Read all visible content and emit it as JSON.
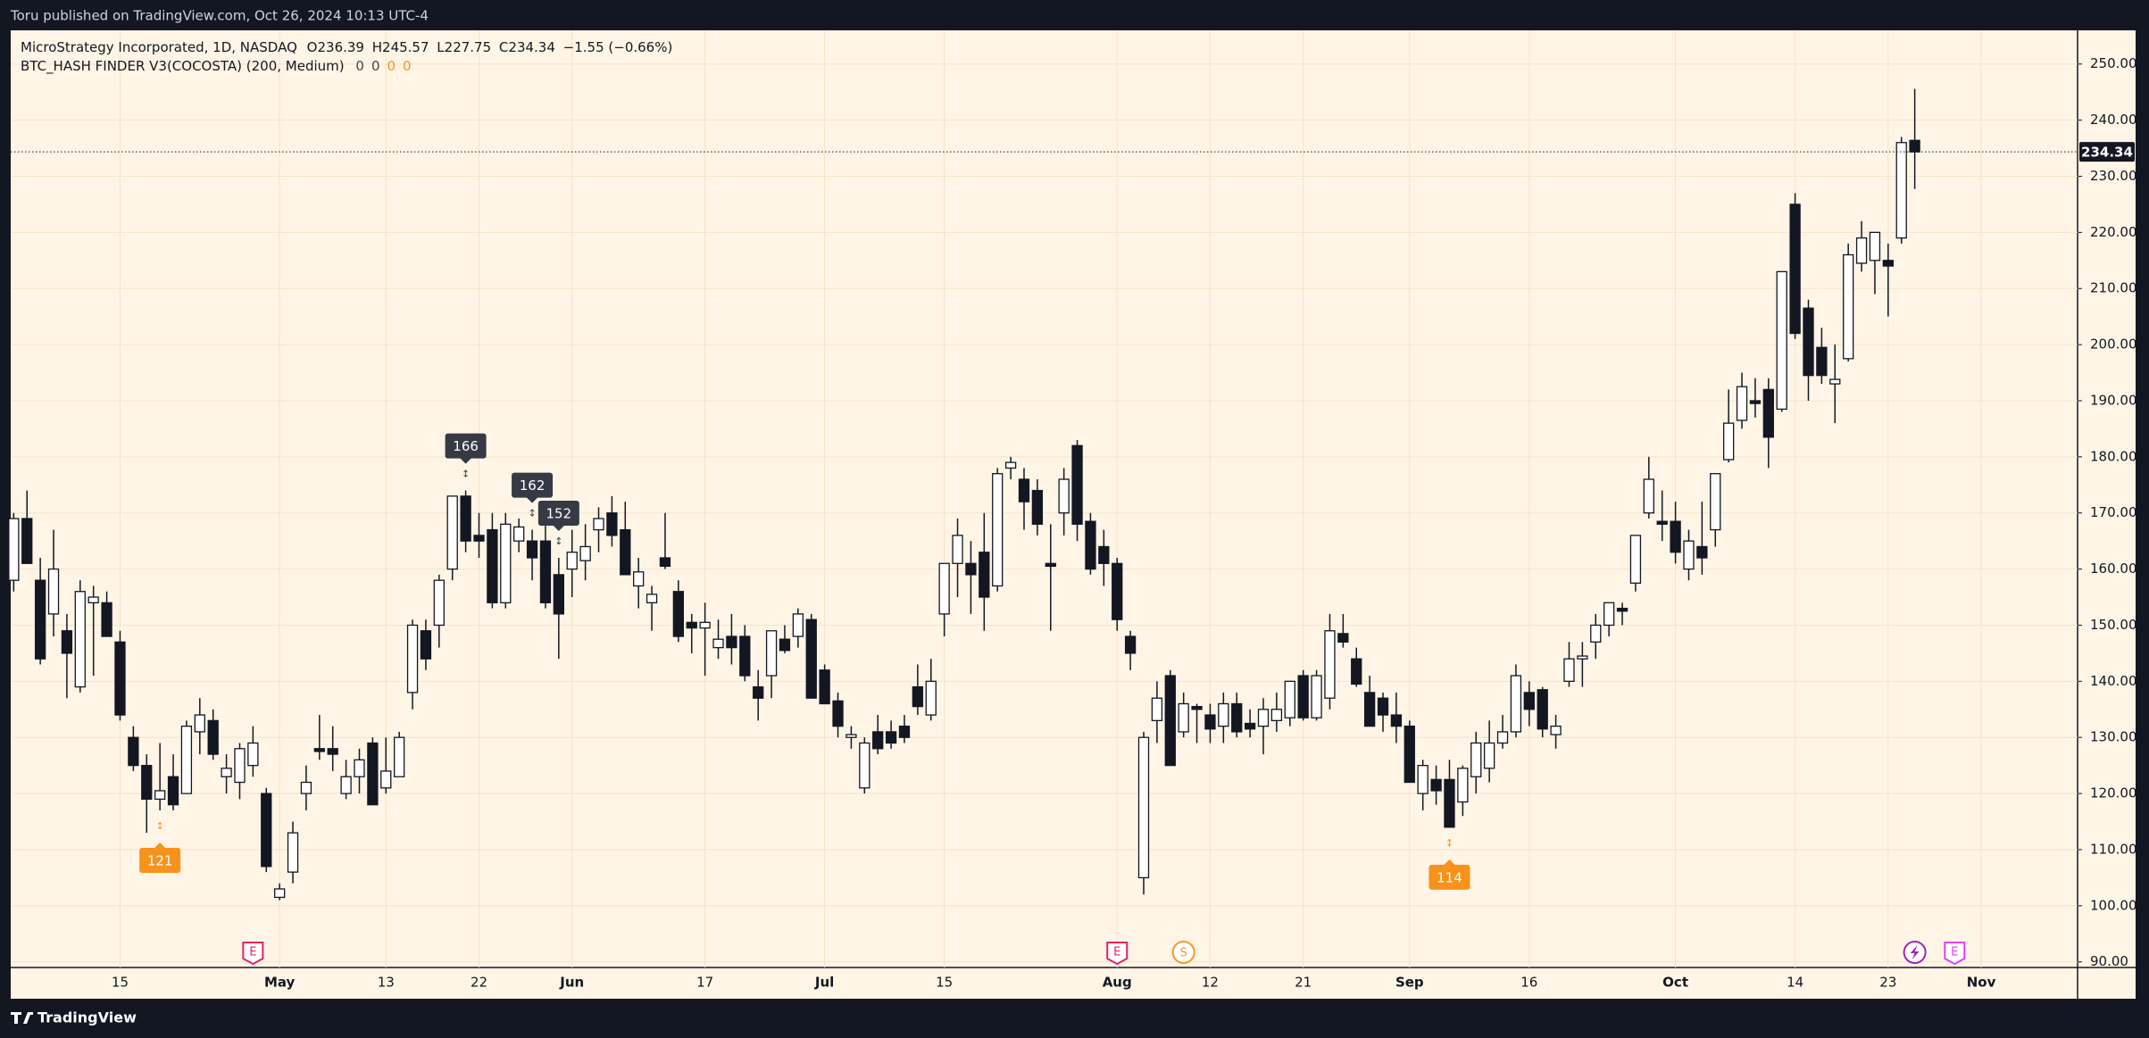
{
  "publisher": "Toru published on TradingView.com, Oct 26, 2024 10:13 UTC-4",
  "brand": "TradingView",
  "legend": {
    "symbol": "MicroStrategy Incorporated, 1D, NASDAQ",
    "open": "O236.39",
    "high": "H245.57",
    "low": "L227.75",
    "close": "C234.34",
    "change": "−1.55 (−0.66%)"
  },
  "indicator": {
    "name": "BTC_HASH FINDER V3(COCOSTA) (200, Medium)",
    "values": [
      0,
      0,
      0,
      0
    ],
    "colors": [
      "#434651",
      "#434651",
      "#f7931a",
      "#f7931a"
    ]
  },
  "chart_data": {
    "type": "candlestick",
    "categories": [
      null,
      null,
      null,
      null,
      null,
      null,
      null,
      null,
      "15",
      null,
      null,
      null,
      null,
      null,
      null,
      null,
      null,
      null,
      null,
      null,
      "May",
      null,
      null,
      null,
      null,
      null,
      null,
      null,
      "13",
      null,
      null,
      null,
      null,
      null,
      null,
      "22",
      null,
      null,
      null,
      null,
      null,
      null,
      "Jun",
      null,
      null,
      null,
      null,
      null,
      null,
      null,
      null,
      null,
      "17",
      null,
      null,
      null,
      null,
      null,
      null,
      null,
      null,
      "Jul",
      null,
      null,
      null,
      null,
      null,
      null,
      null,
      null,
      "15",
      null,
      null,
      null,
      null,
      null,
      null,
      null,
      null,
      null,
      null,
      null,
      null,
      "Aug",
      null,
      null,
      null,
      null,
      null,
      null,
      "12",
      null,
      null,
      null,
      null,
      null,
      null,
      "21",
      null,
      null,
      null,
      null,
      null,
      null,
      null,
      "Sep",
      null,
      null,
      null,
      null,
      null,
      null,
      null,
      null,
      "16",
      null,
      null,
      null,
      null,
      null,
      null,
      null,
      null,
      null,
      null,
      "Oct",
      null,
      null,
      null,
      null,
      null,
      null,
      null,
      null,
      "14",
      null,
      null,
      null,
      null,
      null,
      null,
      "23",
      null,
      null,
      null,
      null,
      null,
      null,
      "Nov"
    ],
    "open": [
      158,
      169,
      158,
      152,
      149,
      139,
      154,
      154,
      147,
      130,
      125,
      119,
      123,
      120,
      131,
      133,
      123,
      122,
      125,
      120,
      101.5,
      106,
      120,
      128,
      128,
      120,
      123,
      129,
      121,
      123,
      138,
      149,
      150,
      160,
      173,
      166,
      167,
      154,
      165,
      165,
      165,
      159,
      160,
      161.5,
      167,
      170,
      167,
      157,
      154,
      162,
      156,
      150.5,
      149.5,
      146,
      148,
      148,
      139,
      141,
      147.5,
      148,
      151,
      142,
      136.5,
      130,
      121,
      131,
      131,
      132,
      139,
      134,
      152,
      161,
      161,
      163,
      157,
      178,
      176,
      174,
      161,
      170,
      182,
      168.5,
      164,
      161,
      148,
      105,
      133,
      141,
      131,
      135.5,
      134,
      132,
      136,
      132.5,
      132,
      133,
      133.5,
      141,
      133.5,
      137,
      148.5,
      144,
      138,
      137,
      134,
      132,
      120,
      122.5,
      122.5,
      118.5,
      123,
      124.5,
      129,
      131,
      138,
      138.5,
      130.5,
      140,
      144,
      147,
      150,
      153,
      157.5,
      170,
      168.5,
      168.5,
      160,
      164,
      167,
      179.5,
      186.5,
      190,
      192,
      188.5,
      225,
      206.5,
      199.5,
      193,
      197.5,
      214.5,
      215,
      215,
      219,
      236.39,
      null,
      null,
      null,
      null,
      null
    ],
    "high": [
      170,
      174,
      162,
      167,
      152,
      158,
      157,
      156,
      149,
      132,
      127,
      129,
      127,
      133,
      137,
      135,
      127,
      129,
      132,
      121,
      104,
      115,
      125,
      134,
      132,
      126,
      128,
      130,
      130,
      131,
      151,
      151,
      159,
      173,
      174,
      170,
      170,
      170,
      169,
      167,
      170,
      162,
      167,
      168,
      171,
      173,
      172,
      162,
      157,
      170,
      158,
      152,
      154,
      151,
      152,
      150,
      142,
      149,
      150,
      153,
      152,
      143,
      138,
      132,
      130,
      134,
      133,
      134,
      143,
      144,
      161,
      169,
      165,
      170,
      178,
      180,
      178,
      176,
      168,
      178,
      183,
      170,
      167,
      162,
      149,
      131,
      140,
      142,
      138,
      136,
      136,
      138,
      138,
      135,
      137,
      138,
      140,
      142,
      142,
      152,
      152,
      146,
      141,
      138,
      138,
      133,
      126,
      125,
      126,
      125,
      131,
      133,
      134,
      143,
      140,
      139,
      134,
      147,
      147,
      152,
      154,
      154,
      166,
      180,
      174,
      172,
      167,
      172,
      177,
      192,
      195,
      194,
      194,
      213,
      227,
      208,
      203,
      200,
      218,
      222,
      220,
      218,
      237,
      245.57,
      null,
      null,
      null,
      null,
      null
    ],
    "low": [
      156,
      161,
      143,
      148,
      137,
      138,
      141,
      148,
      133,
      124,
      113,
      117,
      117,
      120,
      127,
      126,
      120,
      119,
      123,
      106,
      101,
      104,
      117,
      126,
      124,
      119,
      120,
      118,
      120,
      123,
      135,
      142,
      146,
      158,
      163,
      162,
      153,
      153,
      163,
      158,
      153,
      144,
      155,
      158,
      163,
      164,
      159,
      153,
      149,
      160,
      147,
      145,
      141,
      144,
      143,
      140,
      133,
      137,
      145,
      146,
      137,
      136,
      130,
      128,
      120,
      127,
      128,
      129,
      134,
      133,
      148,
      155,
      152,
      149,
      156,
      176,
      167,
      166,
      149,
      166,
      165,
      159,
      157,
      149,
      142,
      102,
      129,
      125,
      130,
      129,
      129,
      129,
      130,
      130,
      127,
      131,
      132,
      133,
      133,
      135,
      146,
      139,
      132,
      131,
      129,
      122,
      117,
      118,
      114,
      116,
      120,
      122,
      128,
      130,
      132,
      130,
      128,
      139,
      139,
      144,
      148,
      150,
      156,
      169,
      165,
      161,
      158,
      159,
      164,
      179,
      185,
      187,
      178,
      188,
      201,
      190,
      193,
      186,
      197,
      213,
      209,
      205,
      218,
      227.75,
      null,
      null,
      null,
      null,
      null
    ],
    "close": [
      169,
      161,
      144,
      160,
      145,
      156,
      155,
      148,
      134,
      125,
      119,
      120.5,
      118,
      132,
      134,
      127,
      124.5,
      128,
      129,
      107,
      103,
      113,
      122,
      127.5,
      127,
      123,
      126,
      118,
      124,
      130,
      150,
      144,
      158,
      173,
      165,
      165,
      154,
      168,
      167.5,
      162,
      154,
      152,
      163,
      164,
      169,
      166,
      159,
      159.5,
      155.5,
      160.5,
      148,
      149.5,
      150.5,
      147.5,
      146,
      141,
      137,
      149,
      145.5,
      152,
      137,
      136,
      132,
      130.5,
      129,
      128,
      129,
      130,
      135.5,
      140,
      161,
      166,
      159,
      155,
      177,
      179,
      172,
      168,
      160.5,
      176,
      168,
      160,
      161,
      151,
      145,
      130,
      137,
      125,
      136,
      135,
      131.5,
      136,
      131,
      131.5,
      135,
      135,
      140,
      133.5,
      141,
      149,
      147,
      139.5,
      132,
      134,
      132,
      122,
      125,
      120.5,
      114,
      124.5,
      129,
      129,
      131,
      141,
      135,
      131.5,
      132,
      144,
      144.5,
      150,
      154,
      152.5,
      166,
      176,
      168,
      163,
      165,
      162,
      177,
      186,
      192.5,
      189.5,
      183.5,
      213,
      202,
      194.5,
      194.5,
      193.8,
      216,
      219,
      220,
      214,
      236,
      234.34,
      null,
      null,
      null,
      null,
      null
    ],
    "up_color": "#ffffff",
    "down_color": "#131722",
    "ylim": [
      89,
      256
    ],
    "yticks": [
      {
        "value": 90,
        "label": "90.00"
      },
      {
        "value": 100,
        "label": "100.00"
      },
      {
        "value": 110,
        "label": "110.00"
      },
      {
        "value": 120,
        "label": "120.00"
      },
      {
        "value": 130,
        "label": "130.00"
      },
      {
        "value": 140,
        "label": "140.00"
      },
      {
        "value": 150,
        "label": "150.00"
      },
      {
        "value": 160,
        "label": "160.00"
      },
      {
        "value": 170,
        "label": "170.00"
      },
      {
        "value": 180,
        "label": "180.00"
      },
      {
        "value": 190,
        "label": "190.00"
      },
      {
        "value": 200,
        "label": "200.00"
      },
      {
        "value": 210,
        "label": "210.00"
      },
      {
        "value": 220,
        "label": "220.00"
      },
      {
        "value": 230,
        "label": "230.00"
      },
      {
        "value": 240,
        "label": "240.00"
      },
      {
        "value": 250,
        "label": "250.00"
      }
    ],
    "grid": true,
    "signals": [
      {
        "value": 166,
        "at": 34,
        "side": "above",
        "color": "#363a45"
      },
      {
        "value": 162,
        "at": 39,
        "side": "above",
        "color": "#363a45"
      },
      {
        "value": 152,
        "at": 41,
        "side": "above",
        "color": "#363a45"
      },
      {
        "value": 121,
        "at": 11,
        "side": "below",
        "color": "#f7931a"
      },
      {
        "value": 114,
        "at": 108,
        "side": "below",
        "color": "#f7931a"
      }
    ],
    "events": [
      {
        "label": "E",
        "at": 18,
        "color": "#e0245e"
      },
      {
        "label": "E",
        "at": 83,
        "color": "#e0245e"
      },
      {
        "label": "S",
        "at": 88,
        "color": "#f59b22"
      },
      {
        "kind": "news",
        "at": 143,
        "color": "#9c27b0"
      },
      {
        "label": "E",
        "at": 146,
        "color": "#e040fb"
      }
    ]
  }
}
